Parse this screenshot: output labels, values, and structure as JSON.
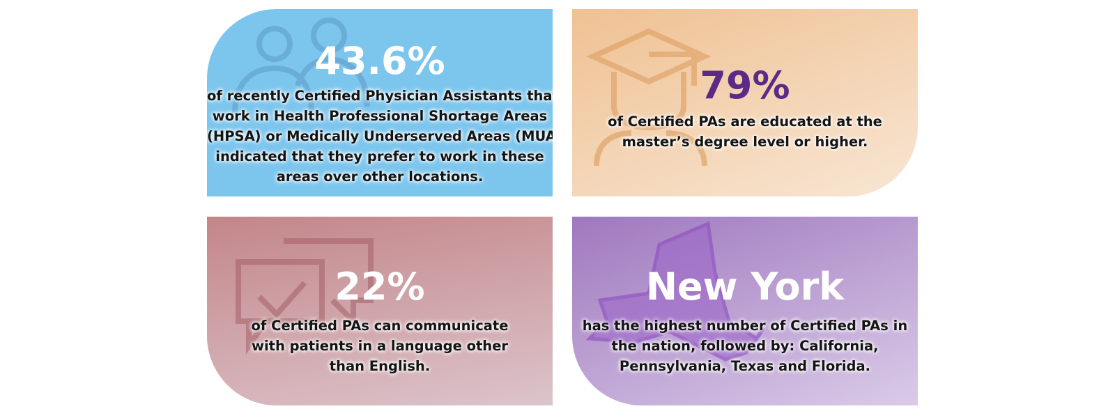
{
  "cards": [
    {
      "headline": "43.6%",
      "lines": [
        "of recently Certified Physician Assistants that",
        "work in Health Professional Shortage Areas",
        "(HPSA) or Medically Underserved Areas (MUA)",
        "indicated that they prefer to work in these",
        "areas over other locations."
      ]
    },
    {
      "headline": "79%",
      "lines": [
        "of Certified PAs are educated at the",
        "master’s degree level or higher."
      ]
    },
    {
      "headline": "22%",
      "lines": [
        "of Certified PAs can communicate",
        "with patients in a language other",
        "than English."
      ]
    },
    {
      "headline": "New York",
      "lines": [
        "has the highest number of Certified PAs in",
        "the nation, followed by: California,",
        "Pennsylvania, Texas and Florida."
      ]
    }
  ]
}
